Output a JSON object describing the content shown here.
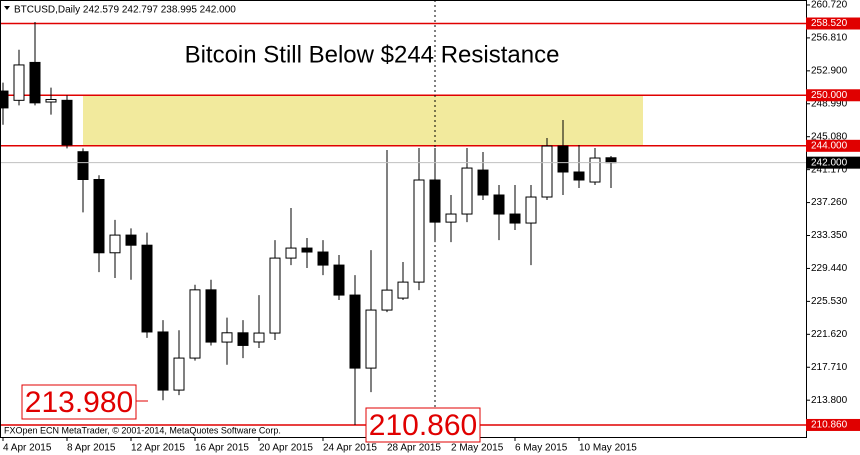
{
  "chart_data": {
    "type": "candlestick",
    "header": "BTCUSD,Daily 242.579 242.797 238.995 242.000",
    "title": "Bitcoin Still Below $244 Resistance",
    "footer": "FXOpen ECN MetaTrader, © 2001-2014, MetaQuotes Software Corp.",
    "categories": [
      "4 Apr 2015",
      null,
      null,
      null,
      "8 Apr 2015",
      null,
      null,
      null,
      "12 Apr 2015",
      null,
      null,
      null,
      "16 Apr 2015",
      null,
      null,
      null,
      "20 Apr 2015",
      null,
      null,
      null,
      "24 Apr 2015",
      null,
      null,
      null,
      "28 Apr 2015",
      null,
      null,
      null,
      "2 May 2015",
      null,
      null,
      null,
      "6 May 2015",
      null,
      null,
      null,
      "10 May 2015",
      null,
      null
    ],
    "open": [
      250.5,
      249.4,
      253.9,
      249.2,
      249.4,
      243.3,
      240.0,
      231.3,
      233.4,
      232.2,
      221.9,
      215.0,
      218.8,
      226.9,
      220.7,
      221.8,
      220.71,
      221.77,
      230.67,
      231.86,
      231.39,
      229.84,
      226.28,
      217.61,
      224.5,
      225.92,
      227.82,
      239.94,
      234.94,
      235.9,
      241.12,
      238.16,
      235.9,
      234.83,
      237.92,
      243.97,
      240.89,
      239.7,
      242.579
    ],
    "high": [
      251.5,
      255.4,
      258.7,
      250.9,
      250.0,
      243.7,
      240.5,
      235.2,
      234.2,
      233.7,
      223.3,
      222.1,
      227.5,
      228.1,
      223.6,
      223.3,
      226.28,
      232.81,
      236.61,
      233.05,
      232.81,
      231.03,
      228.65,
      231.62,
      243.5,
      230.2,
      243.74,
      243.74,
      238.16,
      243.74,
      243.26,
      239.34,
      239.34,
      239.34,
      244.92,
      247.06,
      244.09,
      243.74,
      242.797
    ],
    "low": [
      246.5,
      248.8,
      248.8,
      247.7,
      243.7,
      236.1,
      229.0,
      228.3,
      228.1,
      221.2,
      213.8,
      214.4,
      218.5,
      220.3,
      218.0,
      218.8,
      219.99,
      220.94,
      229.84,
      229.49,
      228.65,
      225.69,
      210.86,
      214.76,
      224.26,
      225.69,
      226.87,
      232.57,
      232.57,
      234.94,
      237.56,
      232.81,
      234.0,
      229.84,
      237.56,
      238.16,
      238.99,
      239.34,
      238.995
    ],
    "close": [
      248.5,
      253.6,
      249.1,
      249.5,
      244.1,
      240.0,
      231.3,
      233.4,
      232.2,
      221.9,
      215.0,
      218.8,
      226.9,
      220.7,
      221.8,
      220.3,
      221.77,
      230.67,
      231.86,
      231.39,
      229.84,
      226.28,
      217.61,
      224.5,
      226.87,
      227.82,
      239.94,
      234.94,
      235.9,
      241.36,
      238.16,
      235.9,
      234.83,
      237.92,
      243.97,
      240.89,
      239.94,
      242.55,
      242.0
    ],
    "up_color": "#ffffff",
    "down_color": "#000000",
    "ylim": [
      209.43,
      261.31
    ],
    "yticks": [
      {
        "value": 260.72,
        "label": "260.720"
      },
      {
        "value": 256.81,
        "label": "256.810"
      },
      {
        "value": 252.9,
        "label": "252.900"
      },
      {
        "value": 248.99,
        "label": "248.990"
      },
      {
        "value": 245.08,
        "label": "245.080"
      },
      {
        "value": 241.17,
        "label": "241.170"
      },
      {
        "value": 237.26,
        "label": "237.260"
      },
      {
        "value": 233.35,
        "label": "233.350"
      },
      {
        "value": 229.44,
        "label": "229.440"
      },
      {
        "value": 225.53,
        "label": "225.530"
      },
      {
        "value": 221.62,
        "label": "221.620"
      },
      {
        "value": 217.71,
        "label": "217.710"
      },
      {
        "value": 213.8,
        "label": "213.800"
      }
    ],
    "levels": [
      {
        "value": 258.52,
        "label": "258.520"
      },
      {
        "value": 250,
        "label": "250.000"
      },
      {
        "value": 244,
        "label": "244.000"
      },
      {
        "value": 210.86,
        "label": "210.860"
      }
    ],
    "level_color": "#e00000",
    "last_price": {
      "value": 242,
      "label": "242.000"
    },
    "zone": [
      244,
      250
    ],
    "zone_color": "#f0e68c",
    "annotations": [
      "213.980",
      "210.860"
    ]
  }
}
